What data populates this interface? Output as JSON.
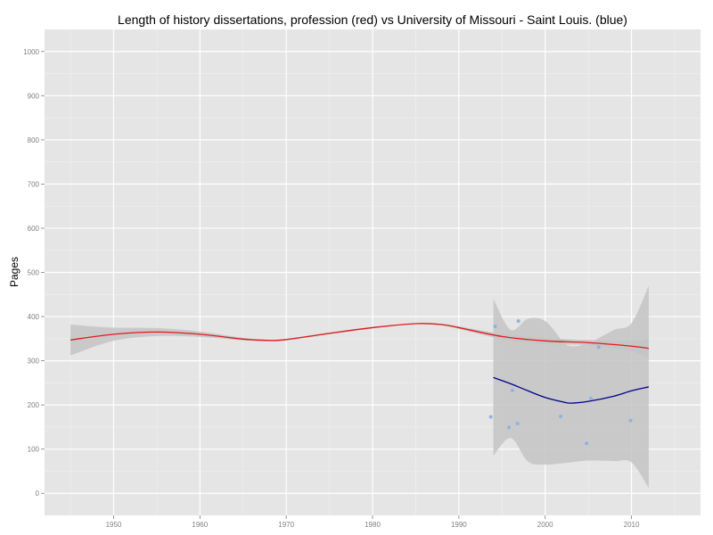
{
  "chart_data": {
    "type": "line",
    "title": "Length of history dissertations, profession (red) vs University of Missouri - Saint Louis. (blue)",
    "xlabel": "",
    "ylabel": "Pages",
    "xlim": [
      1942,
      2018
    ],
    "ylim": [
      -50,
      1050
    ],
    "x_ticks": [
      1950,
      1960,
      1970,
      1980,
      1990,
      2000,
      2010
    ],
    "y_ticks": [
      0,
      100,
      200,
      300,
      400,
      500,
      600,
      700,
      800,
      900,
      1000
    ],
    "grid": true,
    "series": [
      {
        "type": "line",
        "color": "#e31a1c",
        "x": [
          1945,
          1950,
          1955,
          1960,
          1965,
          1968,
          1970,
          1975,
          1980,
          1985,
          1988,
          1990,
          1995,
          2000,
          2005,
          2010,
          2012
        ],
        "y": [
          347,
          360,
          365,
          360,
          349,
          346,
          348,
          362,
          375,
          384,
          382,
          375,
          355,
          345,
          341,
          333,
          328
        ],
        "ci_upper": [
          382,
          375,
          374,
          366,
          352,
          348,
          350,
          364,
          377,
          385,
          384,
          378,
          361,
          352,
          347,
          345,
          351
        ],
        "ci_lower": [
          312,
          345,
          356,
          354,
          346,
          344,
          346,
          360,
          373,
          383,
          380,
          372,
          349,
          338,
          335,
          321,
          305
        ]
      },
      {
        "type": "line",
        "color": "#00008b",
        "x": [
          1994,
          1996,
          1998,
          2000,
          2002,
          2003,
          2005,
          2008,
          2010,
          2012
        ],
        "y": [
          262,
          248,
          232,
          217,
          207,
          204,
          208,
          220,
          232,
          241
        ],
        "ci_upper": [
          440,
          370,
          395,
          390,
          345,
          333,
          340,
          370,
          385,
          470
        ],
        "ci_lower": [
          85,
          125,
          72,
          65,
          68,
          70,
          74,
          73,
          70,
          12
        ]
      },
      {
        "type": "scatter",
        "color": "#8db3e2",
        "x": [
          1993.7,
          1994.2,
          1995.8,
          1996.2,
          1996.8,
          1996.9,
          2001.8,
          2004.8,
          2005.3,
          2006.2,
          2009.9
        ],
        "y": [
          173,
          378,
          149,
          233,
          158,
          390,
          174,
          113,
          215,
          331,
          165
        ]
      }
    ]
  }
}
